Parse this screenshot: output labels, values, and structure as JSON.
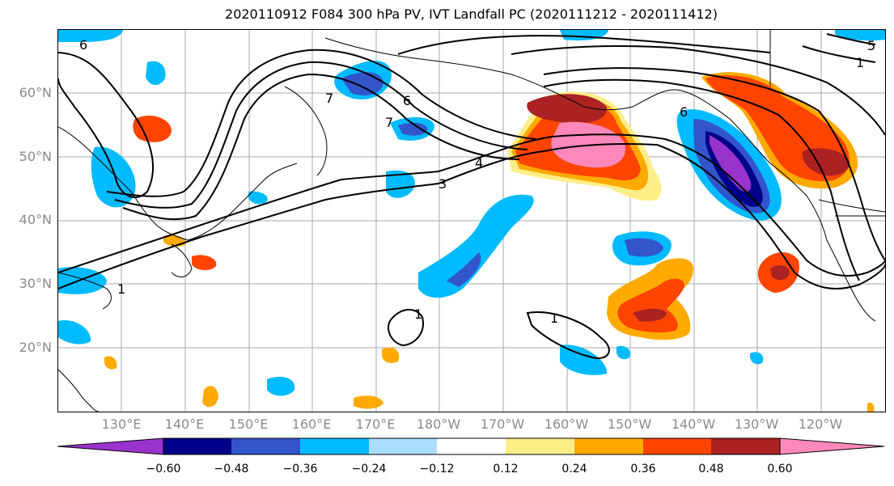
{
  "title": "2020110912 F084 300 hPa PV, IVT Landfall PC (2020111212 - 2020111412)",
  "map": {
    "projection": "PlateCarree",
    "lon_range_degE": [
      120,
      250
    ],
    "lat_range_degN": [
      10,
      70
    ],
    "gridlines": true
  },
  "axes": {
    "lon_ticks": [
      "130°E",
      "140°E",
      "150°E",
      "160°E",
      "170°E",
      "180°W",
      "170°W",
      "160°W",
      "150°W",
      "140°W",
      "130°W",
      "120°W"
    ],
    "lat_ticks": [
      "20°N",
      "30°N",
      "40°N",
      "50°N",
      "60°N"
    ]
  },
  "contour_labels": [
    "6",
    "6",
    "7",
    "4",
    "3",
    "6",
    "1",
    "1",
    "1",
    "1",
    "5",
    "7"
  ],
  "colorbar": {
    "labels": [
      "−0.60",
      "−0.48",
      "−0.36",
      "−0.24",
      "−0.12",
      "0.12",
      "0.24",
      "0.36",
      "0.48",
      "0.60"
    ],
    "colors": [
      "#9933cc",
      "#000088",
      "#3355cc",
      "#00bbff",
      "#aaddff",
      "#ffffff",
      "#ffee88",
      "#ffaa00",
      "#ff4400",
      "#aa2222",
      "#ff88bb"
    ]
  }
}
